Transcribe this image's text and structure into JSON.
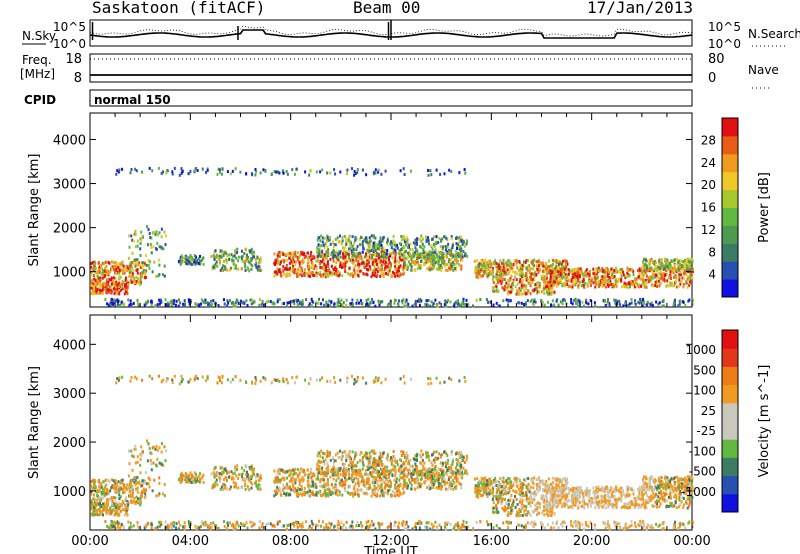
{
  "header": {
    "station": "Saskatoon (fitACF)",
    "beam": "Beam 00",
    "date": "17/Jan/2013"
  },
  "colors": {
    "power_scale": [
      "#1010e0",
      "#2850b0",
      "#3c7c64",
      "#4e9a50",
      "#60b840",
      "#a8c830",
      "#f0c828",
      "#f09a20",
      "#e85c18",
      "#e01010"
    ],
    "velocity_scale": [
      "#1010e0",
      "#2850b0",
      "#3c7c64",
      "#60b840",
      "#c8c8bc",
      "#c8c8bc",
      "#f09a20",
      "#ee7c18",
      "#e03818",
      "#e01010"
    ]
  },
  "chart_data": [
    {
      "type": "line",
      "panel": "noise",
      "left_label": "N.Sky",
      "right_label": "N.Search",
      "left_ticks": [
        "10^5",
        "10^0"
      ],
      "right_ticks": [
        "10^5",
        "10^0"
      ]
    },
    {
      "type": "line",
      "panel": "frequency",
      "left_label": "Freq.",
      "left_unit": "[MHz]",
      "right_label": "Nave",
      "left_ticks": [
        "18",
        "8"
      ],
      "right_ticks": [
        "80",
        "0"
      ]
    },
    {
      "type": "table",
      "panel": "cpid",
      "label": "CPID",
      "value": "normal 150"
    },
    {
      "type": "heatmap",
      "panel": "power",
      "ylabel": "Slant Range [km]",
      "yticks": [
        1000,
        2000,
        3000,
        4000
      ],
      "ylim": [
        200,
        4600
      ],
      "colorbar_label": "Power [dB]",
      "colorbar_ticks": [
        "28",
        "24",
        "20",
        "16",
        "12",
        "8",
        "4"
      ],
      "colorbar_range": [
        0,
        32
      ]
    },
    {
      "type": "heatmap",
      "panel": "velocity",
      "ylabel": "Slant Range [km]",
      "yticks": [
        1000,
        2000,
        3000,
        4000
      ],
      "ylim": [
        200,
        4600
      ],
      "colorbar_label": "Velocity [m s^-1]",
      "colorbar_ticks": [
        "1000",
        "500",
        "100",
        "25",
        "-25",
        "-100",
        "-500",
        "-1000"
      ],
      "xticks": [
        "00:00",
        "04:00",
        "08:00",
        "12:00",
        "16:00",
        "20:00",
        "00:00"
      ],
      "xlabel": "Time UT",
      "xlim_hours": [
        0,
        24
      ]
    }
  ]
}
